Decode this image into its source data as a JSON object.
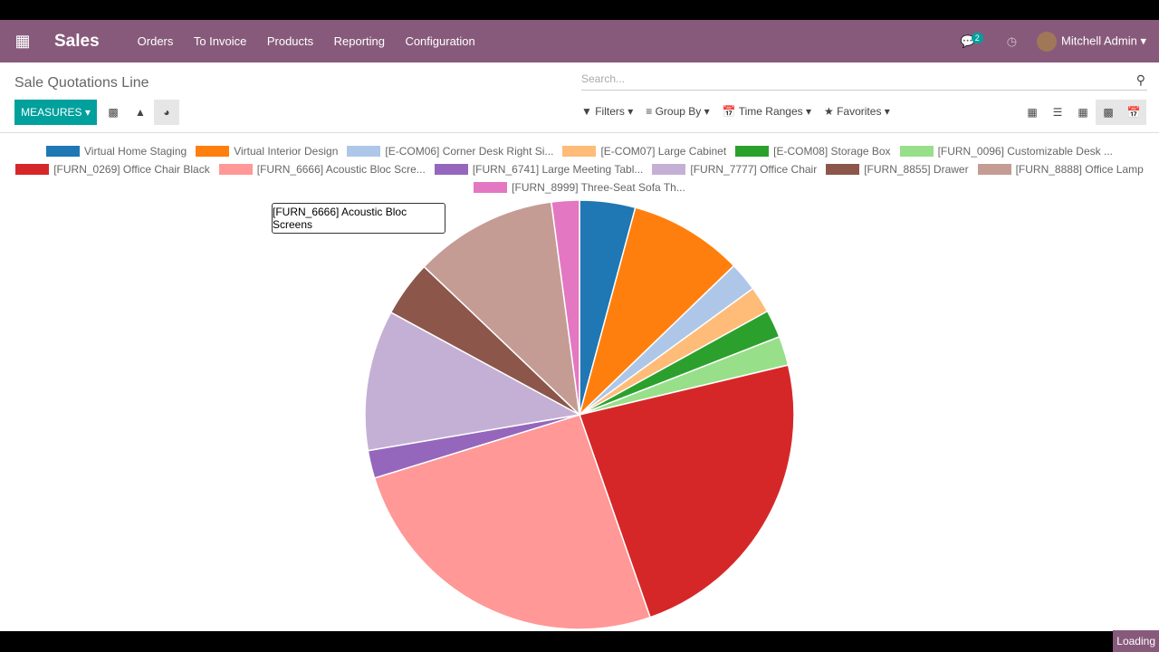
{
  "app": {
    "name": "Sales",
    "menu": [
      "Orders",
      "To Invoice",
      "Products",
      "Reporting",
      "Configuration"
    ],
    "messages_count": "2",
    "user": "Mitchell Admin"
  },
  "page": {
    "title": "Sale Quotations Line",
    "search_placeholder": "Search...",
    "measures": "MEASURES",
    "filters": "Filters",
    "group_by": "Group By",
    "time_ranges": "Time Ranges",
    "favorites": "Favorites",
    "loading": "Loading"
  },
  "tooltip": "[FURN_6666] Acoustic Bloc Screens",
  "chart_data": {
    "type": "pie",
    "legend_position": "top",
    "series": [
      {
        "name": "Virtual Home Staging",
        "value": 4.2,
        "color": "#1f77b4"
      },
      {
        "name": "Virtual Interior Design",
        "value": 8.6,
        "color": "#ff7f0e"
      },
      {
        "name": "[E-COM06] Corner Desk Right Si...",
        "value": 2.2,
        "color": "#aec7e8"
      },
      {
        "name": "[E-COM07] Large Cabinet",
        "value": 2.0,
        "color": "#ffbb78"
      },
      {
        "name": "[E-COM08] Storage Box",
        "value": 2.1,
        "color": "#2ca02c"
      },
      {
        "name": "[FURN_0096] Customizable Desk ...",
        "value": 2.2,
        "color": "#98df8a"
      },
      {
        "name": "[FURN_0269] Office Chair Black",
        "value": 23.4,
        "color": "#d62728"
      },
      {
        "name": "[FURN_6666] Acoustic Bloc Scre...",
        "value": 25.6,
        "color": "#ff9896"
      },
      {
        "name": "[FURN_6741] Large Meeting Tabl...",
        "value": 2.1,
        "color": "#9467bd"
      },
      {
        "name": "[FURN_7777] Office Chair",
        "value": 10.6,
        "color": "#c5b0d5"
      },
      {
        "name": "[FURN_8855] Drawer",
        "value": 4.2,
        "color": "#8c564b"
      },
      {
        "name": "[FURN_8888] Office Lamp",
        "value": 10.8,
        "color": "#c49c94"
      },
      {
        "name": "[FURN_8999] Three-Seat Sofa Th...",
        "value": 2.1,
        "color": "#e377c2"
      }
    ]
  }
}
